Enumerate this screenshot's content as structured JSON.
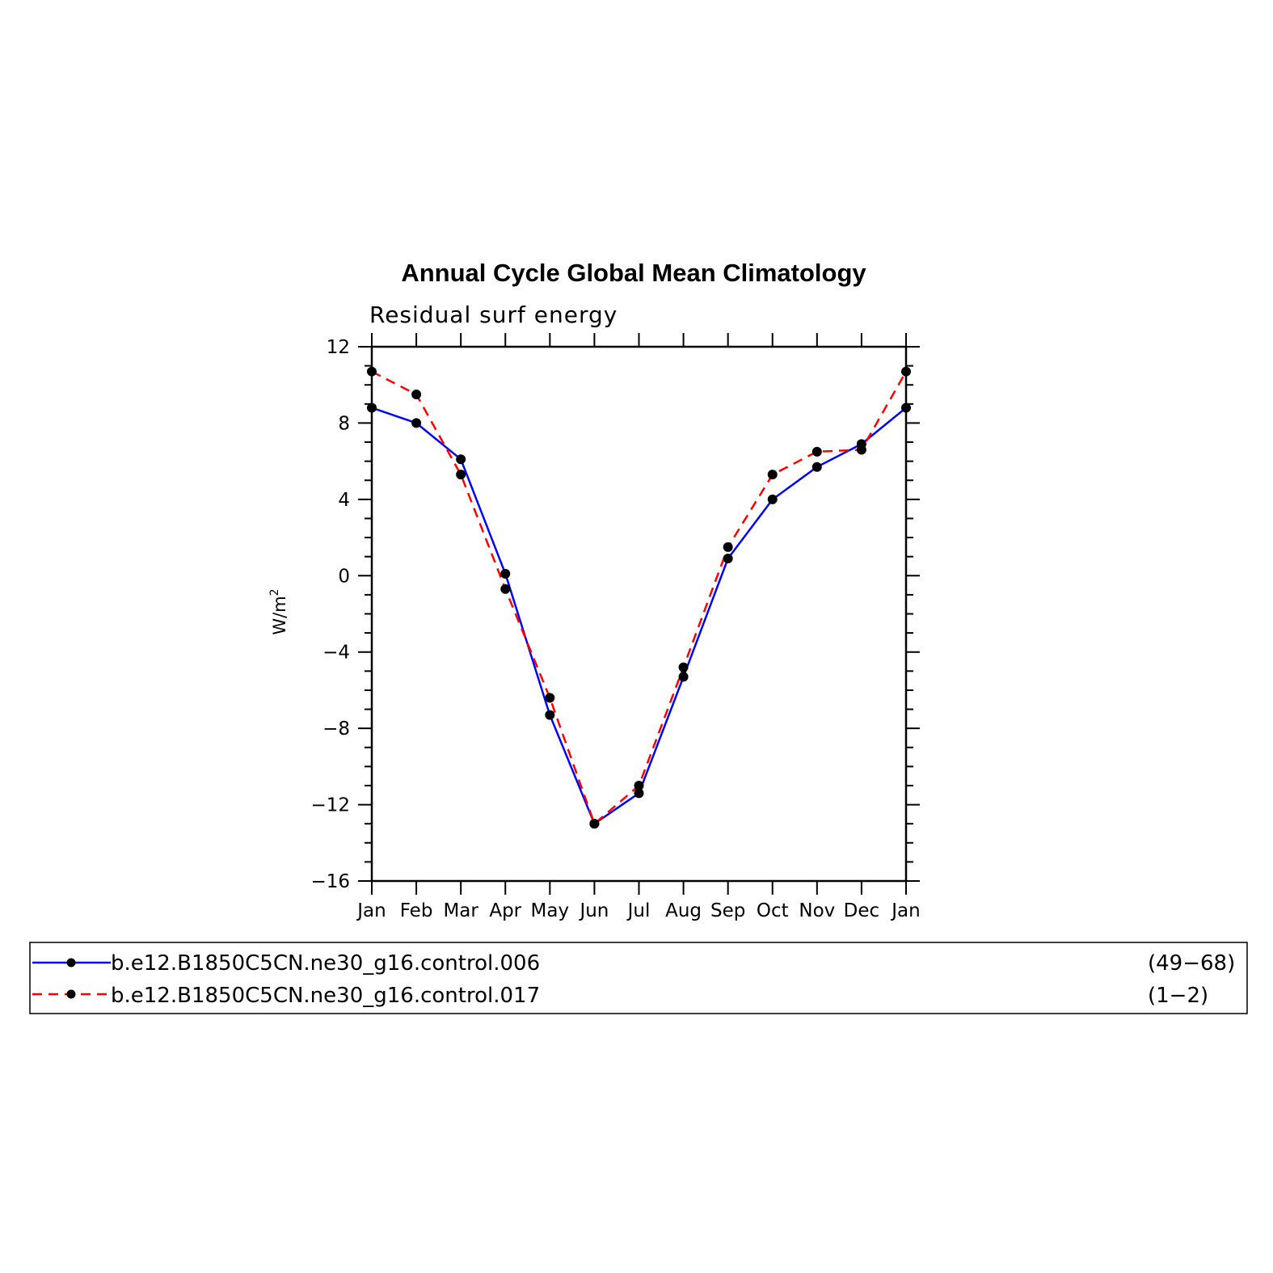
{
  "chart_data": {
    "type": "line",
    "title": "Annual Cycle Global Mean Climatology",
    "subtitle": "Residual surf energy",
    "ylabel": "W/m",
    "ylabel_sup": "2",
    "xlabel": "",
    "categories": [
      "Jan",
      "Feb",
      "Mar",
      "Apr",
      "May",
      "Jun",
      "Jul",
      "Aug",
      "Sep",
      "Oct",
      "Nov",
      "Dec",
      "Jan"
    ],
    "ylim": [
      -16,
      12
    ],
    "yticks": [
      -16,
      -12,
      -8,
      -4,
      0,
      4,
      8,
      12
    ],
    "ytick_labels": [
      "−16",
      "−12",
      "−8",
      "−4",
      "0",
      "4",
      "8",
      "12"
    ],
    "grid": false,
    "legend_position": "bottom",
    "series": [
      {
        "name": "b.e12.B1850C5CN.ne30_g16.control.006",
        "years": "(49−68)",
        "color": "#0000ff",
        "style": "solid",
        "marker": "dot",
        "values": [
          8.8,
          8.0,
          6.1,
          0.1,
          -7.3,
          -13.0,
          -11.4,
          -5.3,
          0.9,
          4.0,
          5.7,
          6.9,
          8.8
        ]
      },
      {
        "name": "b.e12.B1850C5CN.ne30_g16.control.017",
        "years": "(1−2)",
        "color": "#ff0000",
        "style": "dashed",
        "marker": "dot",
        "values": [
          10.7,
          9.5,
          5.3,
          -0.7,
          -6.4,
          -13.0,
          -11.0,
          -4.8,
          1.5,
          5.3,
          6.5,
          6.6,
          10.7
        ]
      }
    ]
  }
}
